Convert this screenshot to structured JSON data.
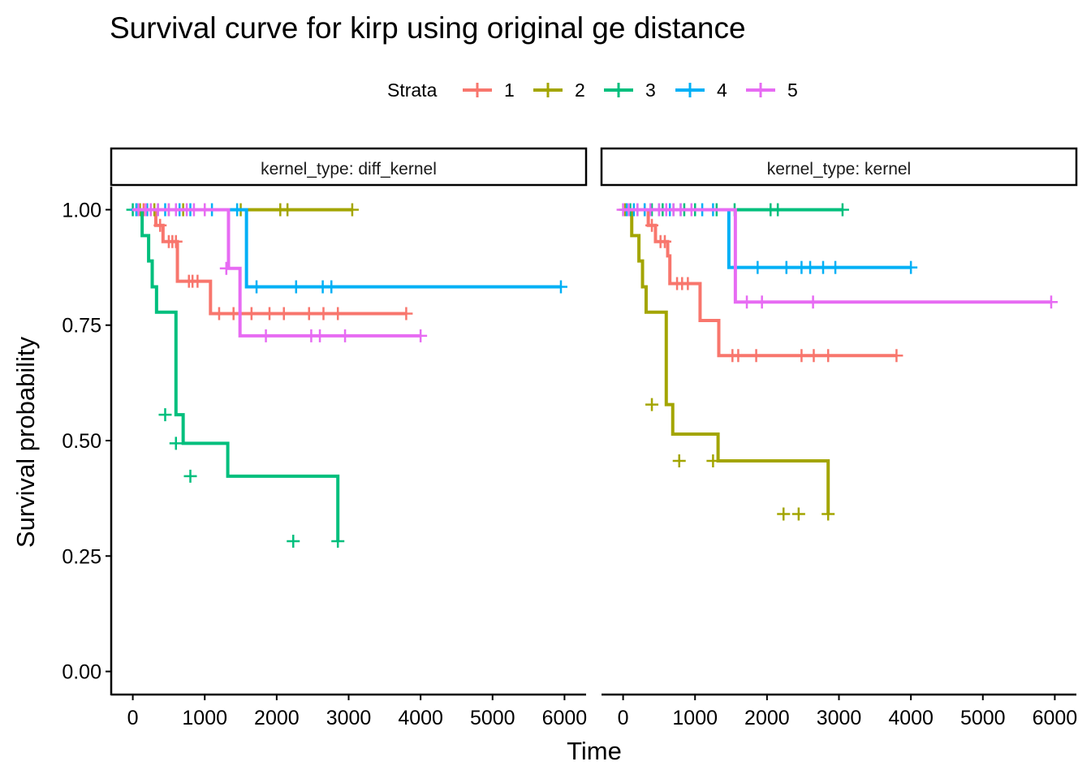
{
  "title": "Survival curve for kirp using original ge distance",
  "legend": {
    "title": "Strata",
    "items": [
      {
        "label": "1",
        "color": "#F8766D"
      },
      {
        "label": "2",
        "color": "#A3A500"
      },
      {
        "label": "3",
        "color": "#00BF7D"
      },
      {
        "label": "4",
        "color": "#00B0F6"
      },
      {
        "label": "5",
        "color": "#E76BF3"
      }
    ]
  },
  "chart_data": {
    "type": "line",
    "step": true,
    "xlabel": "Time",
    "ylabel": "Survival probability",
    "xlim": [
      -300,
      6300
    ],
    "ylim": [
      -0.05,
      1.05
    ],
    "xticks": [
      "0",
      "1000",
      "2000",
      "3000",
      "4000",
      "5000",
      "6000"
    ],
    "yticks": [
      "0.00",
      "0.25",
      "0.50",
      "0.75",
      "1.00"
    ],
    "legend_position": "top",
    "panels": [
      {
        "strip": "kernel_type: diff_kernel",
        "series": [
          {
            "name": "1",
            "color": "#F8766D",
            "x": [
              0,
              320,
              420,
              620,
              1080,
              3800
            ],
            "y": [
              1.0,
              0.966,
              0.931,
              0.845,
              0.775,
              0.775
            ],
            "censor": [
              [
                80,
                1.0
              ],
              [
                150,
                1.0
              ],
              [
                200,
                1.0
              ],
              [
                250,
                1.0
              ],
              [
                380,
                0.966
              ],
              [
                500,
                0.931
              ],
              [
                550,
                0.931
              ],
              [
                600,
                0.931
              ],
              [
                780,
                0.845
              ],
              [
                830,
                0.845
              ],
              [
                900,
                0.845
              ],
              [
                1200,
                0.775
              ],
              [
                1400,
                0.775
              ],
              [
                1650,
                0.775
              ],
              [
                1900,
                0.775
              ],
              [
                2100,
                0.775
              ],
              [
                2450,
                0.775
              ],
              [
                2650,
                0.775
              ],
              [
                2850,
                0.775
              ],
              [
                3800,
                0.775
              ]
            ]
          },
          {
            "name": "2",
            "color": "#A3A500",
            "x": [
              0,
              3050
            ],
            "y": [
              1.0,
              1.0
            ],
            "censor": [
              [
                100,
                1.0
              ],
              [
                300,
                1.0
              ],
              [
                500,
                1.0
              ],
              [
                700,
                1.0
              ],
              [
                1000,
                1.0
              ],
              [
                1500,
                1.0
              ],
              [
                2050,
                1.0
              ],
              [
                2150,
                1.0
              ],
              [
                3050,
                1.0
              ]
            ]
          },
          {
            "name": "3",
            "color": "#00BF7D",
            "x": [
              0,
              130,
              220,
              270,
              330,
              600,
              700,
              1320,
              2850
            ],
            "y": [
              1.0,
              0.944,
              0.889,
              0.833,
              0.778,
              0.556,
              0.494,
              0.423,
              0.282
            ],
            "censor": [
              [
                0,
                1.0
              ],
              [
                50,
                1.0
              ],
              [
                450,
                0.556
              ],
              [
                600,
                0.494
              ],
              [
                800,
                0.423
              ],
              [
                2230,
                0.282
              ],
              [
                2850,
                0.282
              ]
            ]
          },
          {
            "name": "4",
            "color": "#00B0F6",
            "x": [
              0,
              1580,
              5950
            ],
            "y": [
              1.0,
              0.833,
              0.833
            ],
            "censor": [
              [
                50,
                1.0
              ],
              [
                200,
                1.0
              ],
              [
                350,
                1.0
              ],
              [
                450,
                1.0
              ],
              [
                650,
                1.0
              ],
              [
                800,
                1.0
              ],
              [
                1100,
                1.0
              ],
              [
                1450,
                1.0
              ],
              [
                1720,
                0.833
              ],
              [
                2270,
                0.833
              ],
              [
                2640,
                0.833
              ],
              [
                2760,
                0.833
              ],
              [
                5950,
                0.833
              ]
            ]
          },
          {
            "name": "5",
            "color": "#E76BF3",
            "x": [
              0,
              1330,
              1490,
              4000
            ],
            "y": [
              1.0,
              0.873,
              0.727,
              0.727
            ],
            "censor": [
              [
                80,
                1.0
              ],
              [
                180,
                1.0
              ],
              [
                250,
                1.0
              ],
              [
                350,
                1.0
              ],
              [
                500,
                1.0
              ],
              [
                600,
                1.0
              ],
              [
                750,
                1.0
              ],
              [
                850,
                1.0
              ],
              [
                1000,
                1.0
              ],
              [
                1300,
                0.873
              ],
              [
                1850,
                0.727
              ],
              [
                2480,
                0.727
              ],
              [
                2600,
                0.727
              ],
              [
                2950,
                0.727
              ],
              [
                4000,
                0.727
              ]
            ]
          }
        ]
      },
      {
        "strip": "kernel_type: kernel",
        "series": [
          {
            "name": "1",
            "color": "#F8766D",
            "x": [
              0,
              350,
              450,
              620,
              650,
              1070,
              1330,
              3800
            ],
            "y": [
              1.0,
              0.966,
              0.931,
              0.9,
              0.84,
              0.76,
              0.684,
              0.684
            ],
            "censor": [
              [
                300,
                1.0
              ],
              [
                400,
                0.966
              ],
              [
                520,
                0.931
              ],
              [
                580,
                0.931
              ],
              [
                750,
                0.84
              ],
              [
                820,
                0.84
              ],
              [
                900,
                0.84
              ],
              [
                1520,
                0.684
              ],
              [
                1600,
                0.684
              ],
              [
                1850,
                0.684
              ],
              [
                2480,
                0.684
              ],
              [
                2650,
                0.684
              ],
              [
                2850,
                0.684
              ],
              [
                3800,
                0.684
              ]
            ]
          },
          {
            "name": "2",
            "color": "#A3A500",
            "x": [
              0,
              120,
              220,
              270,
              320,
              600,
              690,
              1320,
              2850
            ],
            "y": [
              1.0,
              0.944,
              0.889,
              0.833,
              0.778,
              0.578,
              0.514,
              0.456,
              0.341
            ],
            "censor": [
              [
                30,
                1.0
              ],
              [
                400,
                0.578
              ],
              [
                780,
                0.456
              ],
              [
                1250,
                0.456
              ],
              [
                2230,
                0.341
              ],
              [
                2440,
                0.341
              ],
              [
                2850,
                0.341
              ]
            ]
          },
          {
            "name": "3",
            "color": "#00BF7D",
            "x": [
              0,
              3050
            ],
            "y": [
              1.0,
              1.0
            ],
            "censor": [
              [
                100,
                1.0
              ],
              [
                200,
                1.0
              ],
              [
                400,
                1.0
              ],
              [
                550,
                1.0
              ],
              [
                700,
                1.0
              ],
              [
                850,
                1.0
              ],
              [
                1000,
                1.0
              ],
              [
                1300,
                1.0
              ],
              [
                1550,
                1.0
              ],
              [
                2050,
                1.0
              ],
              [
                2150,
                1.0
              ],
              [
                3050,
                1.0
              ]
            ]
          },
          {
            "name": "4",
            "color": "#00B0F6",
            "x": [
              0,
              1470,
              4000
            ],
            "y": [
              1.0,
              0.875,
              0.875
            ],
            "censor": [
              [
                50,
                1.0
              ],
              [
                150,
                1.0
              ],
              [
                300,
                1.0
              ],
              [
                500,
                1.0
              ],
              [
                650,
                1.0
              ],
              [
                800,
                1.0
              ],
              [
                1100,
                1.0
              ],
              [
                1250,
                1.0
              ],
              [
                1870,
                0.875
              ],
              [
                2270,
                0.875
              ],
              [
                2480,
                0.875
              ],
              [
                2600,
                0.875
              ],
              [
                2780,
                0.875
              ],
              [
                2950,
                0.875
              ],
              [
                4000,
                0.875
              ]
            ]
          },
          {
            "name": "5",
            "color": "#E76BF3",
            "x": [
              0,
              1560,
              5950
            ],
            "y": [
              1.0,
              0.8,
              0.8
            ],
            "censor": [
              [
                0,
                1.0
              ],
              [
                80,
                1.0
              ],
              [
                200,
                1.0
              ],
              [
                380,
                1.0
              ],
              [
                500,
                1.0
              ],
              [
                600,
                1.0
              ],
              [
                700,
                1.0
              ],
              [
                800,
                1.0
              ],
              [
                950,
                1.0
              ],
              [
                1720,
                0.8
              ],
              [
                1930,
                0.8
              ],
              [
                2640,
                0.8
              ],
              [
                5950,
                0.8
              ]
            ]
          }
        ]
      }
    ]
  }
}
